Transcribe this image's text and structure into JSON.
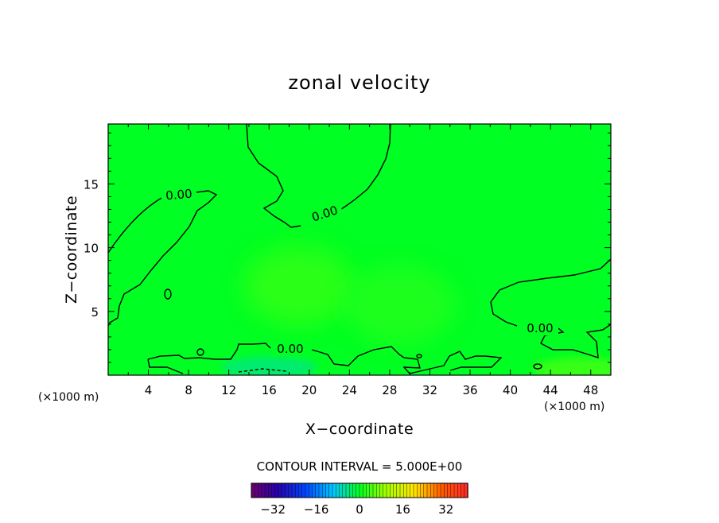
{
  "chart_data": {
    "type": "heatmap",
    "title": "zonal velocity",
    "xlabel": "X−coordinate",
    "ylabel": "Z−coordinate",
    "x_unit_left": "(×1000 m)",
    "x_unit_right": "(×1000 m)",
    "xlim": [
      0,
      50
    ],
    "ylim": [
      0,
      19.7
    ],
    "x_ticks": [
      4,
      8,
      12,
      16,
      20,
      24,
      28,
      32,
      36,
      40,
      44,
      48
    ],
    "y_ticks": [
      5,
      10,
      15
    ],
    "contour_interval_text": "CONTOUR INTERVAL = 5.000E+00",
    "contour_labels": [
      "0.00",
      "0.00",
      "0.00",
      "0.00"
    ],
    "colorbar": {
      "range": [
        -40,
        40
      ],
      "ticks": [
        -32,
        -16,
        0,
        16,
        32
      ],
      "tick_labels": [
        "−32",
        "−16",
        "0",
        "16",
        "32"
      ]
    },
    "background_value": 0,
    "features": [
      {
        "x": 19,
        "z": 7,
        "value": 3
      },
      {
        "x": 29,
        "z": 5.5,
        "value": 2
      },
      {
        "x": 16,
        "z": 0.6,
        "value": -4
      },
      {
        "x": 47,
        "z": 0.5,
        "value": 4
      }
    ],
    "colors": {
      "zero_green": "#00ff22",
      "contour_line": "#000000"
    }
  }
}
